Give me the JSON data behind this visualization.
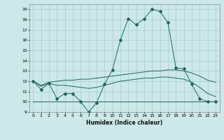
{
  "title": "",
  "xlabel": "Humidex (Indice chaleur)",
  "ylabel": "",
  "background_color": "#cce8e8",
  "grid_color": "#aacccc",
  "line_color": "#1a6b5a",
  "x_values": [
    0,
    1,
    2,
    3,
    4,
    5,
    6,
    7,
    8,
    9,
    10,
    11,
    12,
    13,
    14,
    15,
    16,
    17,
    18,
    19,
    20,
    21,
    22,
    23
  ],
  "line1_y": [
    12,
    11.2,
    11.8,
    10.3,
    10.8,
    10.8,
    10.0,
    9.0,
    9.9,
    11.7,
    13.1,
    16.0,
    18.1,
    17.5,
    18.1,
    19.0,
    18.8,
    17.7,
    13.3,
    13.2,
    11.7,
    10.3,
    10.0,
    10.0
  ],
  "line2_y": [
    12.0,
    11.6,
    11.9,
    12.0,
    12.1,
    12.1,
    12.2,
    12.2,
    12.3,
    12.4,
    12.5,
    12.6,
    12.7,
    12.8,
    12.9,
    13.0,
    13.0,
    13.1,
    13.1,
    13.0,
    12.8,
    12.5,
    12.1,
    11.9
  ],
  "line3_y": [
    12.0,
    11.5,
    11.8,
    11.6,
    11.6,
    11.5,
    11.4,
    11.3,
    11.4,
    11.6,
    11.8,
    12.0,
    12.1,
    12.2,
    12.3,
    12.3,
    12.4,
    12.4,
    12.3,
    12.2,
    11.9,
    11.4,
    10.8,
    10.5
  ],
  "line4_y": [
    10.0,
    10.0,
    10.0,
    10.0,
    10.0,
    10.0,
    10.0,
    10.0,
    10.0,
    10.0,
    10.0,
    10.0,
    10.0,
    10.0,
    10.0,
    10.0,
    10.0,
    10.0,
    10.0,
    10.0,
    10.0,
    10.0,
    10.0,
    10.0
  ],
  "ylim": [
    9,
    19.5
  ],
  "xlim": [
    -0.5,
    23.5
  ],
  "yticks": [
    9,
    10,
    11,
    12,
    13,
    14,
    15,
    16,
    17,
    18,
    19
  ],
  "xticks": [
    0,
    1,
    2,
    3,
    4,
    5,
    6,
    7,
    8,
    9,
    10,
    11,
    12,
    13,
    14,
    15,
    16,
    17,
    18,
    19,
    20,
    21,
    22,
    23
  ]
}
